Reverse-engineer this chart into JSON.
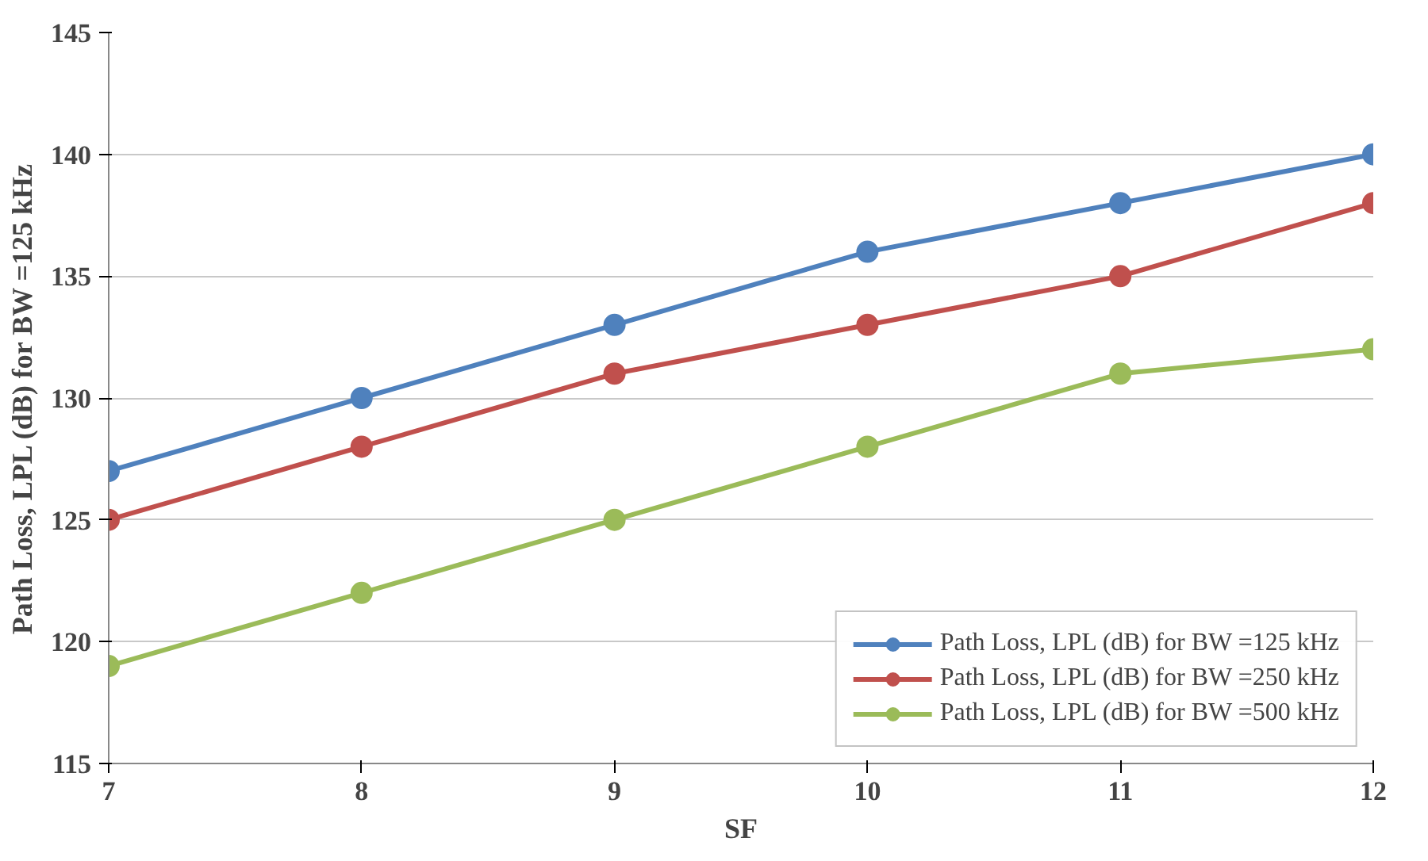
{
  "chart_data": {
    "type": "line",
    "xlabel": "SF",
    "ylabel": "Path Loss, LPL (dB) for BW =125 kHz",
    "x": [
      7,
      8,
      9,
      10,
      11,
      12
    ],
    "series": [
      {
        "name": "Path Loss, LPL (dB) for BW =125 kHz",
        "color": "#4f81bd",
        "values": [
          127,
          130,
          133,
          136,
          138,
          140
        ]
      },
      {
        "name": "Path Loss, LPL (dB) for BW =250 kHz",
        "color": "#c0504d",
        "values": [
          125,
          128,
          131,
          133,
          135,
          138
        ]
      },
      {
        "name": "Path Loss, LPL (dB) for BW =500 kHz",
        "color": "#9bbb59",
        "values": [
          119,
          122,
          125,
          128,
          131,
          132
        ]
      }
    ],
    "xlim": [
      7,
      12
    ],
    "xticks": [
      7,
      8,
      9,
      10,
      11,
      12
    ],
    "ylim": [
      115,
      145
    ],
    "yticks": [
      115,
      120,
      125,
      130,
      135,
      140,
      145
    ],
    "grid": "y",
    "legend": "bottom right",
    "marker": "circle",
    "line_style": "solid"
  }
}
